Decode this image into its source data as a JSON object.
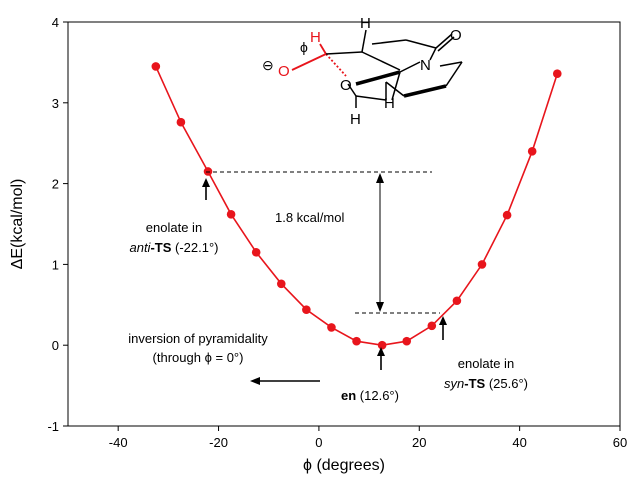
{
  "chart_data": {
    "type": "line",
    "xlabel": "ϕ (degrees)",
    "ylabel": "ΔE(kcal/mol)",
    "xlim": [
      -50,
      60
    ],
    "ylim": [
      -1,
      4
    ],
    "xticks": [
      -40,
      -20,
      0,
      20,
      40,
      60
    ],
    "yticks": [
      -1,
      0,
      1,
      2,
      3,
      4
    ],
    "grid": false,
    "series": [
      {
        "color": "#e8151c",
        "x": [
          -32.5,
          -27.5,
          -22.1,
          -17.5,
          -12.5,
          -7.5,
          -2.5,
          2.5,
          7.5,
          12.6,
          17.5,
          22.5,
          27.5,
          32.5,
          37.5,
          42.5,
          47.5
        ],
        "y": [
          3.45,
          2.76,
          2.15,
          1.62,
          1.15,
          0.76,
          0.44,
          0.22,
          0.05,
          0.0,
          0.05,
          0.24,
          0.55,
          1.0,
          1.61,
          2.4,
          3.36
        ]
      }
    ],
    "annotations": {
      "anti_ts_line1": "enolate in",
      "anti_ts_line2_italic": "anti",
      "anti_ts_line2_bold": "-TS",
      "anti_ts_line2_rest": " (-22.1°)",
      "syn_ts_line1": "enolate in",
      "syn_ts_line2_italic": "syn",
      "syn_ts_line2_bold": "-TS",
      "syn_ts_line2_rest": " (25.6°)",
      "en_bold": "en",
      "en_rest": " (12.6°)",
      "energy_gap": "1.8 kcal/mol",
      "inversion_line1": "inversion of pyramidality",
      "inversion_line2_pre": "(through ",
      "inversion_line2_phi": "ϕ",
      "inversion_line2_post": " = 0°)"
    },
    "structure_labels": {
      "phi": "ϕ",
      "minus": "⊖",
      "o_anion": "O",
      "h_red": "H",
      "o_ring": "O",
      "n": "N",
      "o_carbonyl": "O",
      "h_top": "H",
      "h_right": "H",
      "h_bottom": "H"
    }
  }
}
